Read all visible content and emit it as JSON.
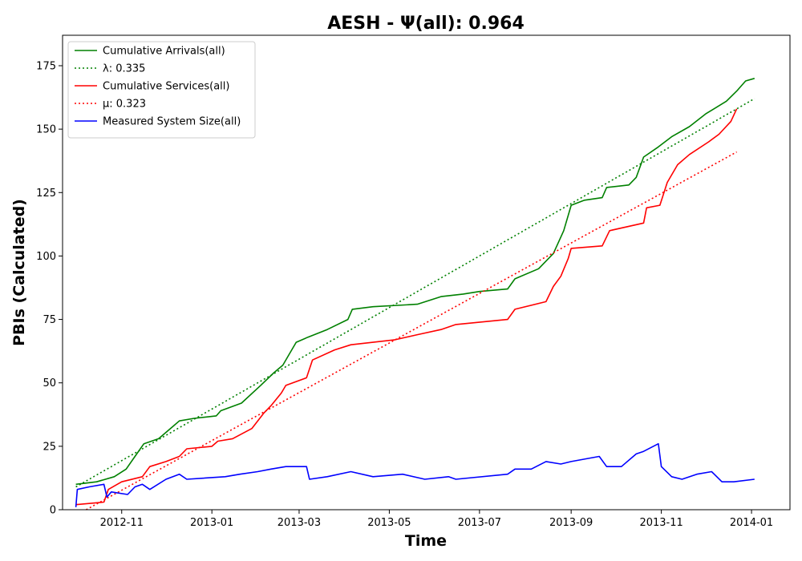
{
  "chart_data": {
    "type": "line",
    "title": "AESH -  Ψ(all): 0.964",
    "xlabel": "Time",
    "ylabel": "PBIs (Calculated)",
    "xlim": [
      "2012-09-22",
      "2014-01-27"
    ],
    "ylim": [
      0,
      187
    ],
    "x_ticks": [
      {
        "date": "2012-11-01",
        "label": "2012-11"
      },
      {
        "date": "2013-01-01",
        "label": "2013-01"
      },
      {
        "date": "2013-03-01",
        "label": "2013-03"
      },
      {
        "date": "2013-05-01",
        "label": "2013-05"
      },
      {
        "date": "2013-07-01",
        "label": "2013-07"
      },
      {
        "date": "2013-09-01",
        "label": "2013-09"
      },
      {
        "date": "2013-11-01",
        "label": "2013-11"
      },
      {
        "date": "2014-01-01",
        "label": "2014-01"
      }
    ],
    "y_ticks": [
      0,
      25,
      50,
      75,
      100,
      125,
      150,
      175
    ],
    "grid": false,
    "legend_position": "top-left",
    "series": [
      {
        "name": "Cumulative Arrivals(all)",
        "color": "#008000",
        "style": "solid",
        "points": [
          [
            "2012-10-01",
            10
          ],
          [
            "2012-10-15",
            11
          ],
          [
            "2012-10-27",
            13
          ],
          [
            "2012-11-04",
            16
          ],
          [
            "2012-11-10",
            21
          ],
          [
            "2012-11-16",
            26
          ],
          [
            "2012-11-26",
            28
          ],
          [
            "2012-12-06",
            33
          ],
          [
            "2012-12-10",
            35
          ],
          [
            "2012-12-20",
            36
          ],
          [
            "2013-01-04",
            37
          ],
          [
            "2013-01-07",
            39
          ],
          [
            "2013-01-21",
            42
          ],
          [
            "2013-02-03",
            49
          ],
          [
            "2013-02-12",
            54
          ],
          [
            "2013-02-18",
            57
          ],
          [
            "2013-02-22",
            61
          ],
          [
            "2013-02-27",
            66
          ],
          [
            "2013-03-07",
            68
          ],
          [
            "2013-03-20",
            71
          ],
          [
            "2013-04-03",
            75
          ],
          [
            "2013-04-06",
            79
          ],
          [
            "2013-04-20",
            80
          ],
          [
            "2013-05-20",
            81
          ],
          [
            "2013-06-05",
            84
          ],
          [
            "2013-06-20",
            85
          ],
          [
            "2013-07-01",
            86
          ],
          [
            "2013-07-20",
            87
          ],
          [
            "2013-07-25",
            91
          ],
          [
            "2013-08-10",
            95
          ],
          [
            "2013-08-20",
            101
          ],
          [
            "2013-08-27",
            110
          ],
          [
            "2013-09-01",
            120
          ],
          [
            "2013-09-10",
            122
          ],
          [
            "2013-09-22",
            123
          ],
          [
            "2013-09-25",
            127
          ],
          [
            "2013-10-10",
            128
          ],
          [
            "2013-10-15",
            131
          ],
          [
            "2013-10-20",
            139
          ],
          [
            "2013-10-30",
            143
          ],
          [
            "2013-11-08",
            147
          ],
          [
            "2013-11-20",
            151
          ],
          [
            "2013-12-01",
            156
          ],
          [
            "2013-12-15",
            161
          ],
          [
            "2013-12-22",
            165
          ],
          [
            "2013-12-28",
            169
          ],
          [
            "2014-01-03",
            170
          ]
        ]
      },
      {
        "name": "λ: 0.335",
        "color": "#008000",
        "style": "dotted",
        "points": [
          [
            "2012-10-01",
            9
          ],
          [
            "2014-01-03",
            162
          ]
        ]
      },
      {
        "name": "Cumulative Services(all)",
        "color": "#ff0000",
        "style": "solid",
        "points": [
          [
            "2012-10-01",
            2
          ],
          [
            "2012-10-20",
            3
          ],
          [
            "2012-10-23",
            8
          ],
          [
            "2012-11-01",
            11
          ],
          [
            "2012-11-15",
            13
          ],
          [
            "2012-11-20",
            17
          ],
          [
            "2012-12-01",
            19
          ],
          [
            "2012-12-10",
            21
          ],
          [
            "2012-12-15",
            24
          ],
          [
            "2013-01-01",
            25
          ],
          [
            "2013-01-05",
            27
          ],
          [
            "2013-01-15",
            28
          ],
          [
            "2013-01-28",
            32
          ],
          [
            "2013-02-05",
            38
          ],
          [
            "2013-02-10",
            41
          ],
          [
            "2013-02-17",
            46
          ],
          [
            "2013-02-20",
            49
          ],
          [
            "2013-03-06",
            52
          ],
          [
            "2013-03-10",
            59
          ],
          [
            "2013-03-25",
            63
          ],
          [
            "2013-04-05",
            65
          ],
          [
            "2013-04-20",
            66
          ],
          [
            "2013-05-05",
            67
          ],
          [
            "2013-05-20",
            69
          ],
          [
            "2013-06-05",
            71
          ],
          [
            "2013-06-15",
            73
          ],
          [
            "2013-07-20",
            75
          ],
          [
            "2013-07-25",
            79
          ],
          [
            "2013-08-15",
            82
          ],
          [
            "2013-08-20",
            88
          ],
          [
            "2013-08-25",
            92
          ],
          [
            "2013-08-30",
            99
          ],
          [
            "2013-09-01",
            103
          ],
          [
            "2013-09-22",
            104
          ],
          [
            "2013-09-27",
            110
          ],
          [
            "2013-10-20",
            113
          ],
          [
            "2013-10-22",
            119
          ],
          [
            "2013-10-31",
            120
          ],
          [
            "2013-11-05",
            129
          ],
          [
            "2013-11-12",
            136
          ],
          [
            "2013-11-20",
            140
          ],
          [
            "2013-12-03",
            145
          ],
          [
            "2013-12-10",
            148
          ],
          [
            "2013-12-18",
            153
          ],
          [
            "2013-12-22",
            158
          ]
        ]
      },
      {
        "name": "μ: 0.323",
        "color": "#ff0000",
        "style": "dotted",
        "points": [
          [
            "2012-10-08",
            0
          ],
          [
            "2013-12-22",
            141
          ]
        ]
      },
      {
        "name": "Measured System Size(all)",
        "color": "#0000ff",
        "style": "solid",
        "points": [
          [
            "2012-10-01",
            1
          ],
          [
            "2012-10-02",
            8
          ],
          [
            "2012-10-10",
            9
          ],
          [
            "2012-10-20",
            10
          ],
          [
            "2012-10-22",
            5
          ],
          [
            "2012-10-25",
            7
          ],
          [
            "2012-11-05",
            6
          ],
          [
            "2012-11-10",
            9
          ],
          [
            "2012-11-15",
            10
          ],
          [
            "2012-11-20",
            8
          ],
          [
            "2012-12-01",
            12
          ],
          [
            "2012-12-10",
            14
          ],
          [
            "2012-12-15",
            12
          ],
          [
            "2013-01-10",
            13
          ],
          [
            "2013-01-20",
            14
          ],
          [
            "2013-02-01",
            15
          ],
          [
            "2013-02-10",
            16
          ],
          [
            "2013-02-20",
            17
          ],
          [
            "2013-03-06",
            17
          ],
          [
            "2013-03-08",
            12
          ],
          [
            "2013-03-20",
            13
          ],
          [
            "2013-04-05",
            15
          ],
          [
            "2013-04-20",
            13
          ],
          [
            "2013-05-10",
            14
          ],
          [
            "2013-05-25",
            12
          ],
          [
            "2013-06-10",
            13
          ],
          [
            "2013-06-15",
            12
          ],
          [
            "2013-07-20",
            14
          ],
          [
            "2013-07-25",
            16
          ],
          [
            "2013-08-05",
            16
          ],
          [
            "2013-08-15",
            19
          ],
          [
            "2013-08-25",
            18
          ],
          [
            "2013-09-01",
            19
          ],
          [
            "2013-09-20",
            21
          ],
          [
            "2013-09-25",
            17
          ],
          [
            "2013-10-05",
            17
          ],
          [
            "2013-10-15",
            22
          ],
          [
            "2013-10-20",
            23
          ],
          [
            "2013-10-30",
            26
          ],
          [
            "2013-11-01",
            17
          ],
          [
            "2013-11-08",
            13
          ],
          [
            "2013-11-15",
            12
          ],
          [
            "2013-11-25",
            14
          ],
          [
            "2013-12-05",
            15
          ],
          [
            "2013-12-12",
            11
          ],
          [
            "2013-12-20",
            11
          ],
          [
            "2014-01-03",
            12
          ]
        ]
      }
    ]
  }
}
